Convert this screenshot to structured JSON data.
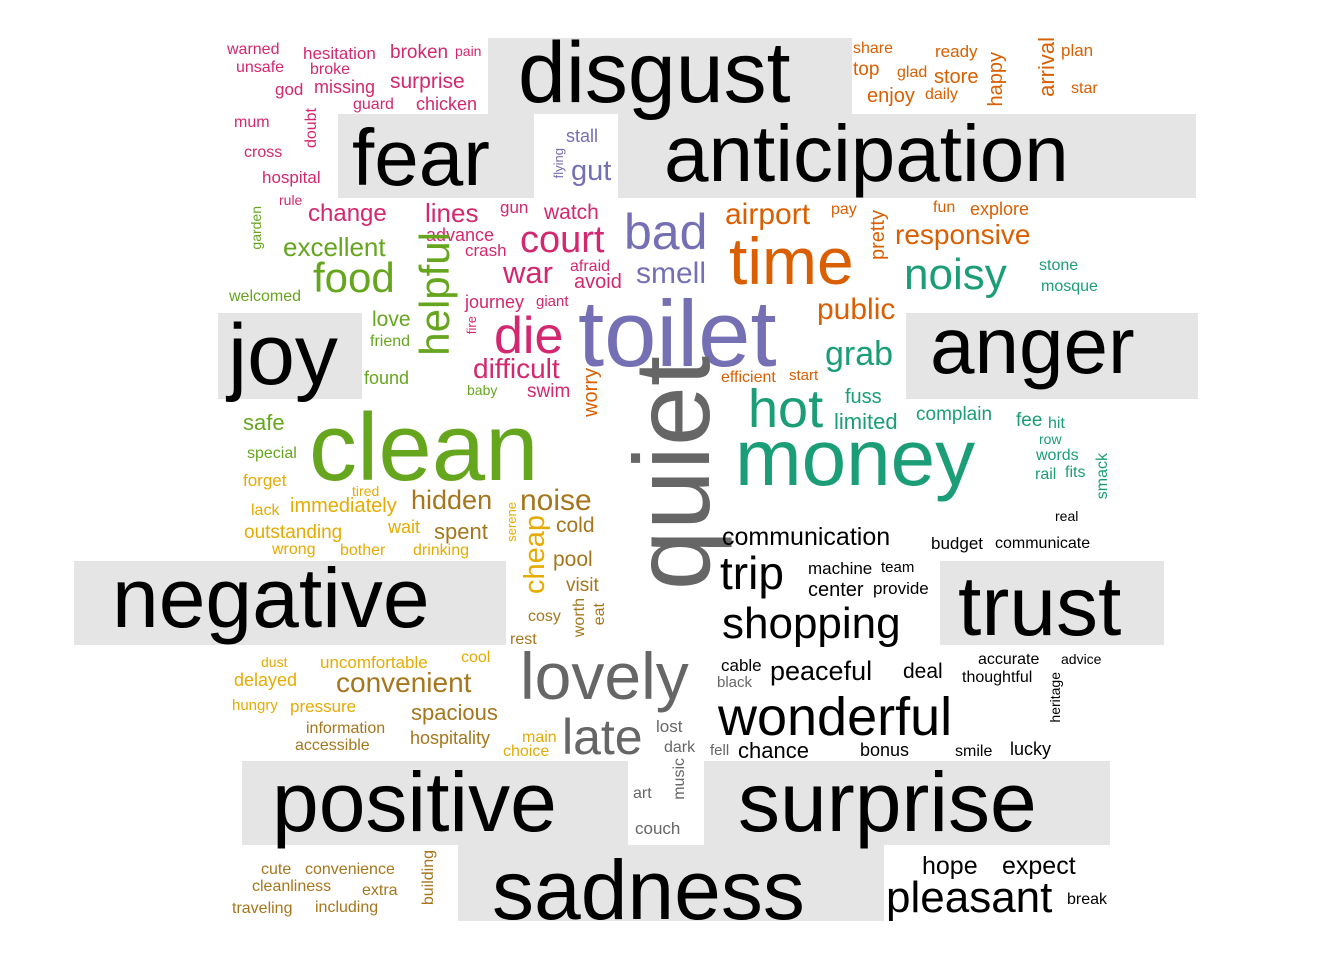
{
  "palette": {
    "magenta": "#d3286f",
    "orange": "#d95f02",
    "teal": "#1b9e77",
    "purple": "#7570b3",
    "green": "#66a61e",
    "gold": "#e6ab02",
    "brown": "#a6761d",
    "grey": "#666666",
    "black": "#000000",
    "panel": "#e5e5e5"
  },
  "categories": {
    "disgust": "disgust",
    "fear": "fear",
    "anticipation": "anticipation",
    "joy": "joy",
    "anger": "anger",
    "negative": "negative",
    "trust": "trust",
    "positive": "positive",
    "surprise": "surprise",
    "sadness": "sadness"
  },
  "words": {
    "warned": "warned",
    "hesitation": "hesitation",
    "broken": "broken",
    "pain": "pain",
    "unsafe": "unsafe",
    "broke": "broke",
    "god": "god",
    "missing": "missing",
    "surprise_w": "surprise",
    "guard": "guard",
    "chicken": "chicken",
    "mum": "mum",
    "doubt": "doubt",
    "cross": "cross",
    "hospital": "hospital",
    "rule": "rule",
    "stall": "stall",
    "flying": "flying",
    "gut": "gut",
    "share": "share",
    "ready": "ready",
    "plan": "plan",
    "arrival": "arrival",
    "top": "top",
    "glad": "glad",
    "store": "store",
    "happy": "happy",
    "star": "star",
    "enjoy": "enjoy",
    "daily": "daily",
    "garden": "garden",
    "change": "change",
    "lines": "lines",
    "gun": "gun",
    "watch": "watch",
    "airport": "airport",
    "pay": "pay",
    "fun": "fun",
    "explore": "explore",
    "excellent": "excellent",
    "advance": "advance",
    "crash": "crash",
    "court": "court",
    "bad": "bad",
    "time": "time",
    "pretty": "pretty",
    "responsive": "responsive",
    "food": "food",
    "helpful": "helpful",
    "war": "war",
    "afraid": "afraid",
    "avoid": "avoid",
    "smell": "smell",
    "noisy": "noisy",
    "stone": "stone",
    "mosque": "mosque",
    "welcomed": "welcomed",
    "journey": "journey",
    "giant": "giant",
    "toilet": "toilet",
    "public": "public",
    "love": "love",
    "fire": "fire",
    "die": "die",
    "friend": "friend",
    "grab": "grab",
    "found": "found",
    "difficult": "difficult",
    "worry": "worry",
    "efficient": "efficient",
    "start": "start",
    "baby": "baby",
    "swim": "swim",
    "hot": "hot",
    "fuss": "fuss",
    "safe": "safe",
    "clean": "clean",
    "quiet": "quiet",
    "limited": "limited",
    "complain": "complain",
    "fee": "fee",
    "hit": "hit",
    "row": "row",
    "special": "special",
    "money": "money",
    "words": "words",
    "smack": "smack",
    "forget": "forget",
    "rail": "rail",
    "fits": "fits",
    "tired": "tired",
    "hidden": "hidden",
    "noise": "noise",
    "lack": "lack",
    "immediately": "immediately",
    "real": "real",
    "serene": "serene",
    "outstanding": "outstanding",
    "wait": "wait",
    "spent": "spent",
    "cold": "cold",
    "communication": "communication",
    "cheap": "cheap",
    "budget": "budget",
    "communicate": "communicate",
    "wrong": "wrong",
    "bother": "bother",
    "drinking": "drinking",
    "pool": "pool",
    "trip": "trip",
    "machine": "machine",
    "team": "team",
    "center": "center",
    "provide": "provide",
    "visit": "visit",
    "shopping": "shopping",
    "cosy": "cosy",
    "worth": "worth",
    "eat": "eat",
    "rest": "rest",
    "dust": "dust",
    "uncomfortable": "uncomfortable",
    "cool": "cool",
    "lovely": "lovely",
    "cable": "cable",
    "peaceful": "peaceful",
    "deal": "deal",
    "accurate": "accurate",
    "advice": "advice",
    "delayed": "delayed",
    "convenient": "convenient",
    "black": "black",
    "thoughtful": "thoughtful",
    "heritage": "heritage",
    "hungry": "hungry",
    "pressure": "pressure",
    "spacious": "spacious",
    "wonderful": "wonderful",
    "information": "information",
    "lost": "lost",
    "late": "late",
    "accessible": "accessible",
    "hospitality": "hospitality",
    "main": "main",
    "choice": "choice",
    "dark": "dark",
    "fell": "fell",
    "chance": "chance",
    "bonus": "bonus",
    "smile": "smile",
    "lucky": "lucky",
    "art": "art",
    "music": "music",
    "couch": "couch",
    "cute": "cute",
    "convenience": "convenience",
    "building": "building",
    "hope": "hope",
    "expect": "expect",
    "cleanliness": "cleanliness",
    "extra": "extra",
    "pleasant": "pleasant",
    "traveling": "traveling",
    "including": "including",
    "break": "break"
  }
}
